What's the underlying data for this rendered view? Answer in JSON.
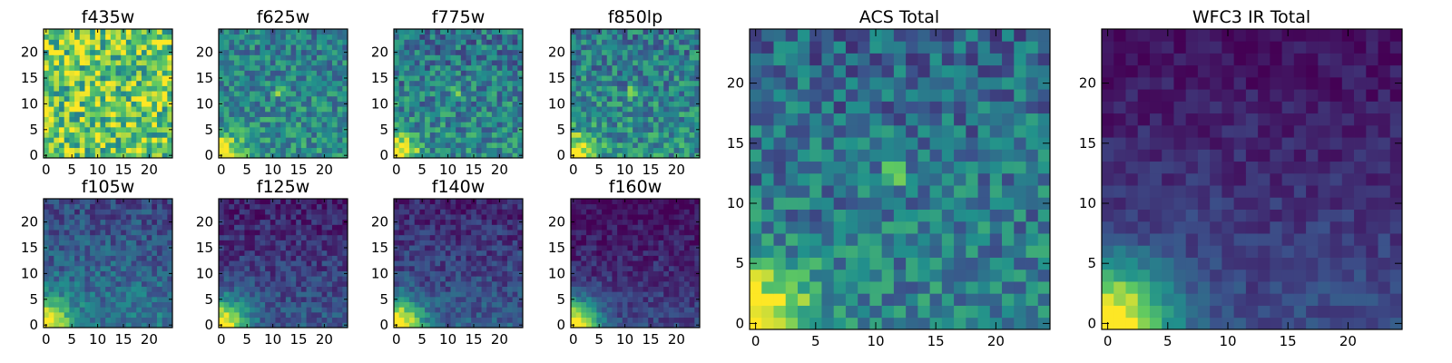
{
  "chart_data": {
    "type": "heatmap",
    "colormap": "viridis",
    "colormap_stops": [
      "#440154",
      "#3b528b",
      "#21918c",
      "#5ec962",
      "#fde725"
    ],
    "frame_color": "#000000",
    "grid_size": 25,
    "panels": [
      {
        "title": "f435w",
        "xticks": [
          "0",
          "5",
          "10",
          "15",
          "20"
        ],
        "yticks": [
          "0",
          "5",
          "10",
          "15",
          "20"
        ],
        "xlim": [
          -0.5,
          24.5
        ],
        "ylim": [
          -0.5,
          24.5
        ],
        "hotspot": null,
        "base": 0.74,
        "noise": 0.32,
        "corner_amp": 0.15,
        "corner_sigma": 3,
        "gradient": 0,
        "seed": 11
      },
      {
        "title": "f625w",
        "xticks": [
          "0",
          "5",
          "10",
          "15",
          "20"
        ],
        "yticks": [
          "0",
          "5",
          "10",
          "15",
          "20"
        ],
        "xlim": [
          -0.5,
          24.5
        ],
        "ylim": [
          -0.5,
          24.5
        ],
        "hotspot": [
          11.5,
          12.5
        ],
        "hotspot_amp": 0.35,
        "base": 0.5,
        "noise": 0.2,
        "corner_amp": 0.55,
        "corner_sigma": 3,
        "gradient": 0.08,
        "seed": 23
      },
      {
        "title": "f775w",
        "xticks": [
          "0",
          "5",
          "10",
          "15",
          "20"
        ],
        "yticks": [
          "0",
          "5",
          "10",
          "15",
          "20"
        ],
        "xlim": [
          -0.5,
          24.5
        ],
        "ylim": [
          -0.5,
          24.5
        ],
        "hotspot": [
          11.5,
          12.5
        ],
        "hotspot_amp": 0.3,
        "base": 0.48,
        "noise": 0.22,
        "corner_amp": 0.6,
        "corner_sigma": 3,
        "gradient": 0.1,
        "seed": 37
      },
      {
        "title": "f850lp",
        "xticks": [
          "0",
          "5",
          "10",
          "15",
          "20"
        ],
        "yticks": [
          "0",
          "5",
          "10",
          "15",
          "20"
        ],
        "xlim": [
          -0.5,
          24.5
        ],
        "ylim": [
          -0.5,
          24.5
        ],
        "hotspot": [
          11.5,
          12.5
        ],
        "hotspot_amp": 0.3,
        "base": 0.5,
        "noise": 0.22,
        "corner_amp": 0.6,
        "corner_sigma": 3,
        "gradient": 0.1,
        "seed": 41
      },
      {
        "title": "f105w",
        "xticks": [
          "0",
          "5",
          "10",
          "15",
          "20"
        ],
        "yticks": [
          "0",
          "5",
          "10",
          "15",
          "20"
        ],
        "xlim": [
          -0.5,
          24.5
        ],
        "ylim": [
          -0.5,
          24.5
        ],
        "hotspot": null,
        "base": 0.4,
        "noise": 0.14,
        "corner_amp": 0.65,
        "corner_sigma": 3.5,
        "gradient": 0.18,
        "seed": 53
      },
      {
        "title": "f125w",
        "xticks": [
          "0",
          "5",
          "10",
          "15",
          "20"
        ],
        "yticks": [
          "0",
          "5",
          "10",
          "15",
          "20"
        ],
        "xlim": [
          -0.5,
          24.5
        ],
        "ylim": [
          -0.5,
          24.5
        ],
        "hotspot": null,
        "base": 0.28,
        "noise": 0.12,
        "corner_amp": 0.8,
        "corner_sigma": 3.5,
        "gradient": 0.2,
        "seed": 67
      },
      {
        "title": "f140w",
        "xticks": [
          "0",
          "5",
          "10",
          "15",
          "20"
        ],
        "yticks": [
          "0",
          "5",
          "10",
          "15",
          "20"
        ],
        "xlim": [
          -0.5,
          24.5
        ],
        "ylim": [
          -0.5,
          24.5
        ],
        "hotspot": null,
        "base": 0.3,
        "noise": 0.12,
        "corner_amp": 0.8,
        "corner_sigma": 3.5,
        "gradient": 0.2,
        "seed": 71
      },
      {
        "title": "f160w",
        "xticks": [
          "0",
          "5",
          "10",
          "15",
          "20"
        ],
        "yticks": [
          "0",
          "5",
          "10",
          "15",
          "20"
        ],
        "xlim": [
          -0.5,
          24.5
        ],
        "ylim": [
          -0.5,
          24.5
        ],
        "hotspot": null,
        "base": 0.22,
        "noise": 0.1,
        "corner_amp": 0.85,
        "corner_sigma": 3.5,
        "gradient": 0.2,
        "seed": 83
      },
      {
        "title": "ACS Total",
        "xticks": [
          "0",
          "5",
          "10",
          "15",
          "20"
        ],
        "yticks": [
          "0",
          "5",
          "10",
          "15",
          "20"
        ],
        "xlim": [
          -0.5,
          24.5
        ],
        "ylim": [
          -0.5,
          24.5
        ],
        "hotspot": [
          11.5,
          12.5
        ],
        "hotspot_amp": 0.35,
        "base": 0.45,
        "noise": 0.2,
        "corner_amp": 0.7,
        "corner_sigma": 3.2,
        "gradient": 0.12,
        "seed": 97
      },
      {
        "title": "WFC3 IR Total",
        "xticks": [
          "0",
          "5",
          "10",
          "15",
          "20"
        ],
        "yticks": [
          "0",
          "5",
          "10",
          "15",
          "20"
        ],
        "xlim": [
          -0.5,
          24.5
        ],
        "ylim": [
          -0.5,
          24.5
        ],
        "hotspot": null,
        "base": 0.24,
        "noise": 0.08,
        "corner_amp": 0.85,
        "corner_sigma": 3.5,
        "gradient": 0.2,
        "seed": 101
      }
    ]
  }
}
